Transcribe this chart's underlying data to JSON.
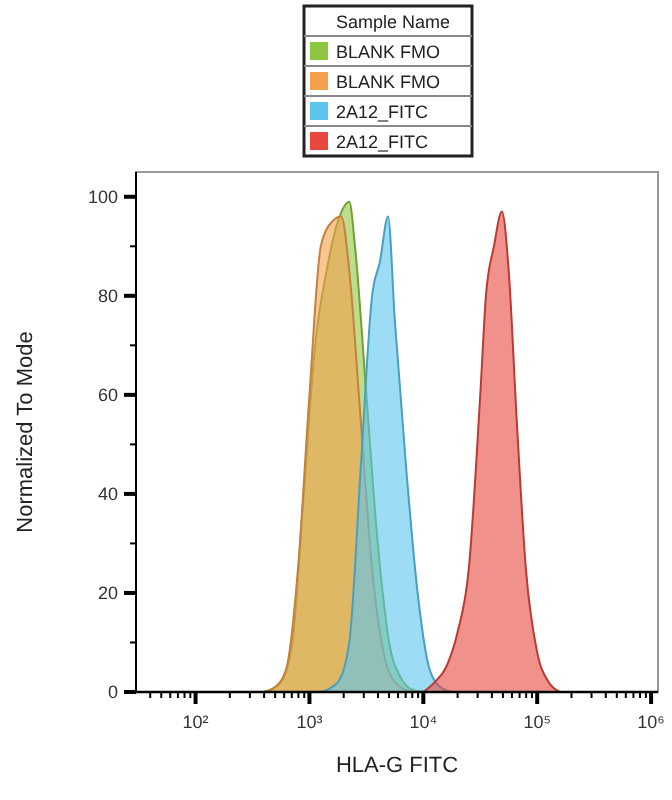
{
  "chart_data": {
    "type": "area",
    "xlabel": "HLA-G FITC",
    "ylabel": "Normalized To Mode",
    "legend_title": "Sample Name",
    "legend": "top",
    "log": "x",
    "xlim": [
      30,
      1150000
    ],
    "ylim": [
      0,
      105
    ],
    "xticks": [
      {
        "value": 40,
        "label": null
      },
      {
        "value": 50,
        "label": null
      },
      {
        "value": 60,
        "label": null
      },
      {
        "value": 70,
        "label": null
      },
      {
        "value": 80,
        "label": null
      },
      {
        "value": 90,
        "label": null
      },
      {
        "value": 100,
        "label": "10²"
      },
      {
        "value": 200,
        "label": null
      },
      {
        "value": 300,
        "label": null
      },
      {
        "value": 400,
        "label": null
      },
      {
        "value": 500,
        "label": null
      },
      {
        "value": 600,
        "label": null
      },
      {
        "value": 700,
        "label": null
      },
      {
        "value": 800,
        "label": null
      },
      {
        "value": 900,
        "label": null
      },
      {
        "value": 1000,
        "label": "10³"
      },
      {
        "value": 2000,
        "label": null
      },
      {
        "value": 3000,
        "label": null
      },
      {
        "value": 4000,
        "label": null
      },
      {
        "value": 5000,
        "label": null
      },
      {
        "value": 6000,
        "label": null
      },
      {
        "value": 7000,
        "label": null
      },
      {
        "value": 8000,
        "label": null
      },
      {
        "value": 9000,
        "label": null
      },
      {
        "value": 10000,
        "label": "10⁴"
      },
      {
        "value": 20000,
        "label": null
      },
      {
        "value": 30000,
        "label": null
      },
      {
        "value": 40000,
        "label": null
      },
      {
        "value": 50000,
        "label": null
      },
      {
        "value": 60000,
        "label": null
      },
      {
        "value": 70000,
        "label": null
      },
      {
        "value": 80000,
        "label": null
      },
      {
        "value": 90000,
        "label": null
      },
      {
        "value": 100000,
        "label": "10⁵"
      },
      {
        "value": 200000,
        "label": null
      },
      {
        "value": 300000,
        "label": null
      },
      {
        "value": 400000,
        "label": null
      },
      {
        "value": 500000,
        "label": null
      },
      {
        "value": 600000,
        "label": null
      },
      {
        "value": 700000,
        "label": null
      },
      {
        "value": 800000,
        "label": null
      },
      {
        "value": 900000,
        "label": null
      },
      {
        "value": 1000000,
        "label": "10⁶"
      }
    ],
    "yticks": [
      0,
      {
        "value": 10,
        "label": null
      },
      20,
      {
        "value": 30,
        "label": null
      },
      40,
      {
        "value": 50,
        "label": null
      },
      60,
      {
        "value": 70,
        "label": null
      },
      80,
      {
        "value": 90,
        "label": null
      },
      100
    ],
    "series": [
      {
        "name": "BLANK FMO",
        "color": "#8dc63f",
        "x": [
          398,
          562,
          708,
          891,
          1122,
          1413,
          1778,
          2239,
          2512,
          3162,
          3981,
          5012,
          6310,
          7943,
          10000
        ],
        "values": [
          0,
          2,
          10,
          40,
          70,
          85,
          95,
          99,
          90,
          60,
          30,
          10,
          3,
          0.5,
          0
        ]
      },
      {
        "name": "BLANK FMO",
        "color": "#f5a04a",
        "x": [
          398,
          501,
          631,
          794,
          1000,
          1259,
          1585,
          1905,
          2239,
          2818,
          3548,
          4467,
          5623,
          7943
        ],
        "values": [
          0,
          1,
          5,
          25,
          60,
          90,
          95,
          96,
          85,
          55,
          25,
          8,
          2,
          0
        ]
      },
      {
        "name": "2A12_FITC",
        "color": "#5bc5ef",
        "x": [
          1259,
          1778,
          2239,
          2818,
          3548,
          4169,
          4898,
          5623,
          7079,
          8913,
          11220,
          14125,
          17783
        ],
        "values": [
          0,
          2,
          10,
          45,
          80,
          87,
          96,
          75,
          45,
          20,
          5,
          1,
          0
        ]
      },
      {
        "name": "2A12_FITC",
        "color": "#e8483f",
        "x": [
          10000,
          12589,
          15849,
          19953,
          25119,
          31623,
          35481,
          41687,
          48978,
          56234,
          66069,
          79433,
          100000,
          125893,
          158489
        ],
        "values": [
          0,
          2,
          5,
          12,
          25,
          60,
          80,
          90,
          97,
          85,
          55,
          25,
          8,
          2,
          0
        ]
      }
    ]
  }
}
